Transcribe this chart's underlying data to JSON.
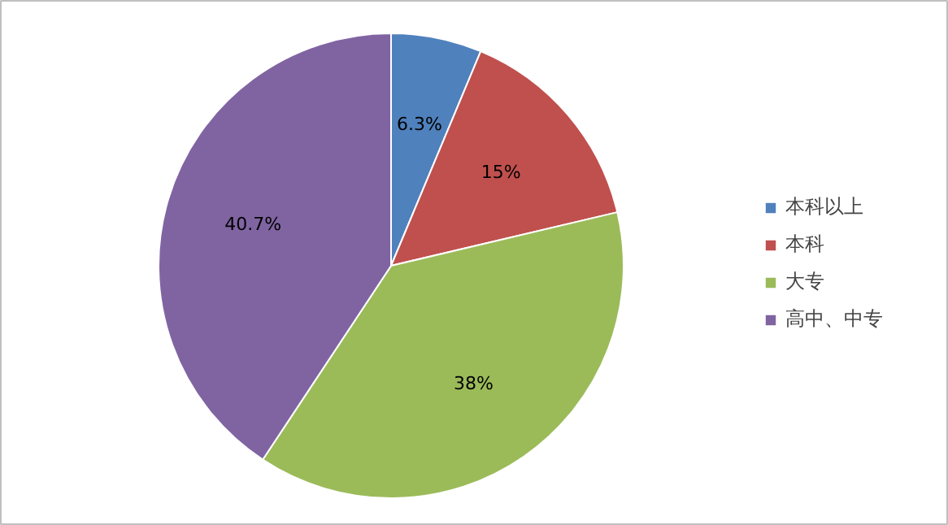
{
  "chart_data": {
    "type": "pie",
    "categories": [
      "本科以上",
      "本科",
      "大专",
      "高中、中专"
    ],
    "values": [
      6.3,
      15,
      38,
      40.7
    ],
    "colors": [
      "#4f81bd",
      "#c0504d",
      "#9bbb59",
      "#8064a2"
    ],
    "value_labels": [
      "6.3%",
      "15%",
      "38%",
      "40.7%"
    ],
    "legend": "right"
  }
}
